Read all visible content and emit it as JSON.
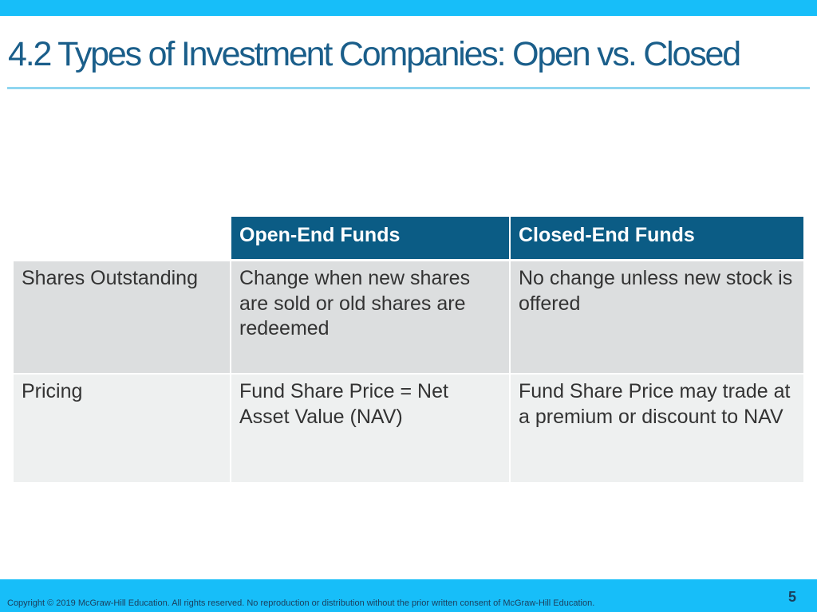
{
  "slide": {
    "title": "4.2 Types of Investment Companies: Open vs. Closed"
  },
  "table": {
    "headers": [
      "",
      "Open-End Funds",
      "Closed-End Funds"
    ],
    "rows": [
      {
        "label": "Shares Outstanding",
        "open": "Change when new shares are sold or old shares are redeemed",
        "closed": "No change unless new stock is offered"
      },
      {
        "label": "Pricing",
        "open": "Fund Share Price = Net Asset Value (NAV)",
        "closed": "Fund Share Price may trade at a premium or discount to NAV"
      }
    ]
  },
  "footer": {
    "copyright": "Copyright © 2019 McGraw-Hill Education. All rights reserved. No reproduction or distribution without the prior written consent of McGraw-Hill Education.",
    "page_number": "5"
  },
  "colors": {
    "accent_bar": "#17bef9",
    "title_text": "#1a5e8a",
    "header_fill": "#0b5c85",
    "row1_fill": "#dcdedf",
    "row2_fill": "#eef0f0"
  }
}
